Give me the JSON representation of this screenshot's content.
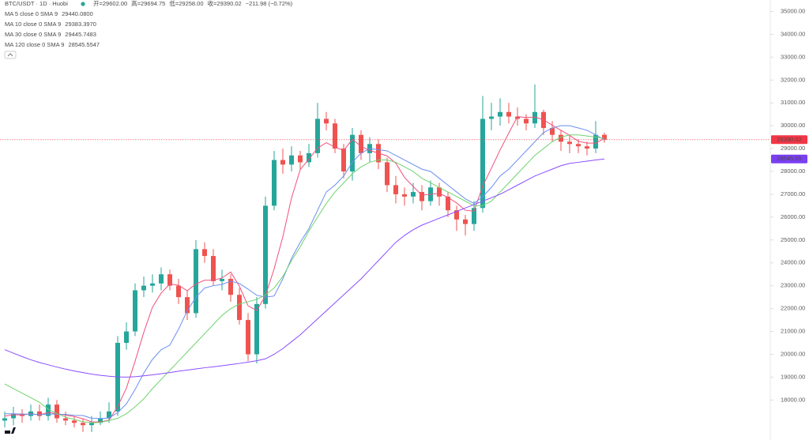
{
  "chart_data": {
    "type": "candlestick",
    "title": "BTC/USDT · 1D · Huobi",
    "ohlc_text": [
      "开=29602.00",
      "高=29694.75",
      "低=29258.00",
      "收=29390.02",
      "−211.98 (−0.72%)"
    ],
    "up_color": "#26a69a",
    "down_color": "#ef5350",
    "open": [
      17100,
      17200,
      17400,
      17300,
      17500,
      17300,
      17800,
      17200,
      17100,
      17000,
      16900,
      17000,
      17200,
      17500,
      20500,
      21000,
      22800,
      23000,
      23100,
      23500,
      23000,
      22500,
      21800,
      24600,
      24300,
      23200,
      23300,
      22600,
      21500,
      20000,
      22200,
      26500,
      28500,
      28300,
      28700,
      28400,
      28800,
      30300,
      30100,
      29000,
      28000,
      29600,
      28800,
      29200,
      28400,
      27400,
      27000,
      26900,
      27100,
      26700,
      27300,
      26900,
      26300,
      25900,
      25700,
      26400,
      30300,
      30400,
      30600,
      30400,
      30300,
      30100,
      30600,
      29900,
      29600,
      29300,
      29200,
      29100,
      29000,
      29602
    ],
    "high": [
      17500,
      17700,
      17600,
      17800,
      17800,
      18100,
      18000,
      17500,
      17300,
      17200,
      17300,
      17500,
      17900,
      20800,
      21400,
      23100,
      23400,
      23500,
      23800,
      23700,
      23300,
      22800,
      25000,
      24900,
      24600,
      23700,
      23500,
      22900,
      21800,
      22500,
      26900,
      28900,
      29000,
      29100,
      28900,
      29200,
      31000,
      30600,
      30300,
      29200,
      29900,
      29800,
      29500,
      29400,
      28600,
      27800,
      27300,
      27500,
      27400,
      27600,
      27500,
      27100,
      26500,
      26100,
      26700,
      31300,
      31000,
      31200,
      31000,
      30800,
      30500,
      31800,
      30700,
      30200,
      29800,
      29600,
      29400,
      29300,
      30200,
      29694.75
    ],
    "low": [
      16800,
      16900,
      17000,
      17100,
      17100,
      17100,
      17000,
      16900,
      16800,
      16600,
      16600,
      16900,
      17000,
      17300,
      20200,
      20800,
      22500,
      22700,
      22800,
      22800,
      22200,
      21500,
      21600,
      24000,
      23000,
      22800,
      22300,
      21300,
      19700,
      19600,
      22000,
      26300,
      27900,
      28000,
      28100,
      28200,
      28600,
      29800,
      28800,
      27700,
      27600,
      28500,
      28400,
      28100,
      27100,
      26600,
      26500,
      26600,
      26300,
      26500,
      26500,
      26000,
      25400,
      25200,
      25400,
      26200,
      29800,
      30000,
      30100,
      30000,
      29800,
      29900,
      29600,
      29300,
      28900,
      28800,
      28800,
      28700,
      28800,
      29258
    ],
    "close": [
      17200,
      17400,
      17300,
      17500,
      17300,
      17800,
      17200,
      17100,
      17000,
      16900,
      17000,
      17200,
      17500,
      20500,
      21000,
      22800,
      23000,
      23100,
      23500,
      23000,
      22500,
      21800,
      24600,
      24300,
      23200,
      23300,
      22600,
      21500,
      20000,
      22200,
      26500,
      28500,
      28300,
      28700,
      28400,
      28800,
      30300,
      30100,
      29000,
      28000,
      29600,
      28800,
      29200,
      28400,
      27400,
      27000,
      26900,
      27100,
      26700,
      27300,
      26900,
      26300,
      25900,
      25700,
      26400,
      30300,
      30400,
      30600,
      30400,
      30300,
      30100,
      30600,
      29900,
      29600,
      29300,
      29200,
      29100,
      29000,
      29602,
      29390.02
    ],
    "series": [
      {
        "name": "MA 5 close 0 SMA 9",
        "color": "#f0507a",
        "value_label": "29440.0800",
        "values": [
          17300,
          17350,
          17350,
          17400,
          17350,
          17460,
          17400,
          17340,
          17280,
          17180,
          17040,
          17040,
          17120,
          17720,
          18520,
          19700,
          20960,
          22060,
          22680,
          23080,
          23020,
          22780,
          23080,
          23240,
          23240,
          23340,
          23600,
          22980,
          22120,
          21920,
          22560,
          23740,
          25140,
          26840,
          28080,
          28540,
          29020,
          29260,
          29060,
          28920,
          29400,
          29100,
          28920,
          28800,
          28680,
          28360,
          27740,
          27340,
          26960,
          27000,
          27040,
          26860,
          26620,
          26300,
          26260,
          27360,
          28140,
          28940,
          29680,
          30400,
          30360,
          30380,
          30260,
          30020,
          29800,
          29580,
          29320,
          29240,
          29240,
          29440.08
        ]
      },
      {
        "name": "MA 10 close 0 SMA 9",
        "color": "#6b8ff0",
        "value_label": "29383.3970",
        "values": [
          17400,
          17400,
          17380,
          17380,
          17360,
          17380,
          17380,
          17370,
          17330,
          17320,
          17200,
          17190,
          17210,
          17450,
          17830,
          18460,
          19180,
          19780,
          20200,
          20400,
          21100,
          21900,
          22500,
          22900,
          23000,
          23060,
          23200,
          23100,
          22850,
          22580,
          22500,
          22550,
          23300,
          24200,
          24900,
          25500,
          26300,
          27100,
          27400,
          27800,
          28400,
          28800,
          29000,
          28950,
          28900,
          28700,
          28500,
          28300,
          28100,
          28000,
          27700,
          27400,
          27100,
          26800,
          26600,
          26900,
          27300,
          27800,
          28100,
          28500,
          28900,
          29300,
          29700,
          29900,
          30000,
          30000,
          29900,
          29800,
          29600,
          29383.397
        ]
      },
      {
        "name": "MA 30 close 0 SMA 9",
        "color": "#6fd36f",
        "value_label": "29445.7483",
        "values": [
          18700,
          18500,
          18300,
          18100,
          17900,
          17600,
          17400,
          17250,
          17150,
          17050,
          17000,
          17020,
          17100,
          17200,
          17400,
          17700,
          18050,
          18500,
          18900,
          19300,
          19700,
          20100,
          20500,
          20900,
          21300,
          21700,
          22000,
          22200,
          22300,
          22400,
          22600,
          22900,
          23400,
          24100,
          24700,
          25400,
          26000,
          26600,
          27100,
          27500,
          27900,
          28200,
          28400,
          28500,
          28500,
          28400,
          28200,
          28000,
          27700,
          27500,
          27300,
          27100,
          26900,
          26700,
          26500,
          26500,
          26700,
          27100,
          27500,
          27900,
          28300,
          28700,
          29000,
          29300,
          29500,
          29600,
          29600,
          29550,
          29500,
          29445.7483
        ]
      },
      {
        "name": "MA 120 close 0 SMA 9",
        "color": "#8a4dff",
        "value_label": "28545.5547",
        "values": [
          20200,
          20050,
          19900,
          19760,
          19640,
          19540,
          19440,
          19350,
          19270,
          19200,
          19130,
          19080,
          19040,
          19010,
          19000,
          19020,
          19060,
          19100,
          19150,
          19200,
          19260,
          19310,
          19360,
          19410,
          19450,
          19500,
          19550,
          19600,
          19660,
          19720,
          19800,
          20000,
          20250,
          20550,
          20850,
          21200,
          21550,
          21900,
          22250,
          22600,
          22950,
          23300,
          23700,
          24100,
          24500,
          24900,
          25200,
          25450,
          25650,
          25800,
          25950,
          26100,
          26250,
          26400,
          26550,
          26700,
          26850,
          27000,
          27200,
          27400,
          27600,
          27800,
          27950,
          28100,
          28250,
          28350,
          28400,
          28450,
          28500,
          28545.5547
        ]
      }
    ],
    "price_tags": [
      {
        "value": 29390.02,
        "label": "29390.02",
        "color": "#f23645"
      },
      {
        "value": 28545.55,
        "label": "28545.55",
        "color": "#7b3ff2"
      }
    ],
    "ylim": [
      16250,
      35500
    ],
    "yticks": [
      {
        "value": 18000,
        "label": "18000.00"
      },
      {
        "value": 19000,
        "label": "19000.00"
      },
      {
        "value": 20000,
        "label": "20000.00"
      },
      {
        "value": 21000,
        "label": "21000.00"
      },
      {
        "value": 22000,
        "label": "22000.00"
      },
      {
        "value": 23000,
        "label": "23000.00"
      },
      {
        "value": 24000,
        "label": "24000.00"
      },
      {
        "value": 25000,
        "label": "25000.00"
      },
      {
        "value": 26000,
        "label": "26000.00"
      },
      {
        "value": 27000,
        "label": "27000.00"
      },
      {
        "value": 28000,
        "label": "28000.00"
      },
      {
        "value": 29000,
        "label": "29000.00"
      },
      {
        "value": 30000,
        "label": "30000.00"
      },
      {
        "value": 31000,
        "label": "31000.00"
      },
      {
        "value": 32000,
        "label": "32000.00"
      },
      {
        "value": 33000,
        "label": "33000.00"
      },
      {
        "value": 34000,
        "label": "34000.00"
      },
      {
        "value": 35000,
        "label": "35000.00"
      }
    ],
    "grid": false
  }
}
